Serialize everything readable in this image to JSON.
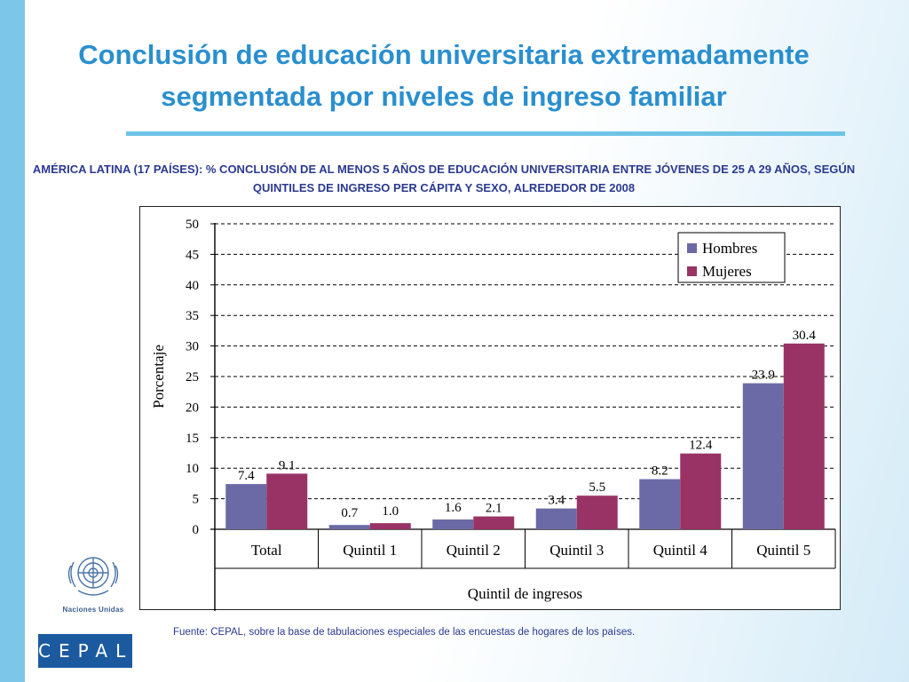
{
  "page": {
    "title": "Conclusión de educación universitaria extremadamente segmentada por niveles de ingreso familiar",
    "subtitle": "AMÉRICA LATINA (17 PAÍSES):  % CONCLUSIÓN DE AL MENOS 5 AÑOS DE EDUCACIÓN UNIVERSITARIA ENTRE JÓVENES DE 25 A 29 AÑOS, SEGÚN QUINTILES DE INGRESO PER CÁPITA Y SEXO, ALREDEDOR DE 2008",
    "source": "Fuente: CEPAL, sobre la base de tabulaciones especiales de las encuestas de hogares de los países.",
    "logos": {
      "un_label": "Naciones Unidas",
      "cepal_label": "CEPAL"
    },
    "colors": {
      "title": "#2a8fcf",
      "subtitle": "#2b3a8f",
      "left_bar": "#7cc6ea",
      "cepal_bg": "#1c5aa0"
    }
  },
  "chart_data": {
    "type": "bar",
    "categories": [
      "Total",
      "Quintil 1",
      "Quintil 2",
      "Quintil 3",
      "Quintil 4",
      "Quintil 5"
    ],
    "series": [
      {
        "name": "Hombres",
        "values": [
          7.4,
          0.7,
          1.6,
          3.4,
          8.2,
          23.9
        ],
        "color": "#6b6aa6"
      },
      {
        "name": "Mujeres",
        "values": [
          9.1,
          1.0,
          2.1,
          5.5,
          12.4,
          30.4
        ],
        "color": "#993366"
      }
    ],
    "data_labels": {
      "Hombres": [
        "7.4",
        "0.7",
        "1.6",
        "3.4",
        "8.2",
        "23.9"
      ],
      "Mujeres": [
        "9.1",
        "1.0",
        "2.1",
        "5.5",
        "12.4",
        "30.4"
      ]
    },
    "xlabel": "Quintil de ingresos",
    "ylabel": "Porcentaje",
    "ylim": [
      0,
      50
    ],
    "yticks": [
      0,
      5,
      10,
      15,
      20,
      25,
      30,
      35,
      40,
      45,
      50
    ],
    "grid": "horizontal dashed",
    "legend_position": "top-right"
  }
}
